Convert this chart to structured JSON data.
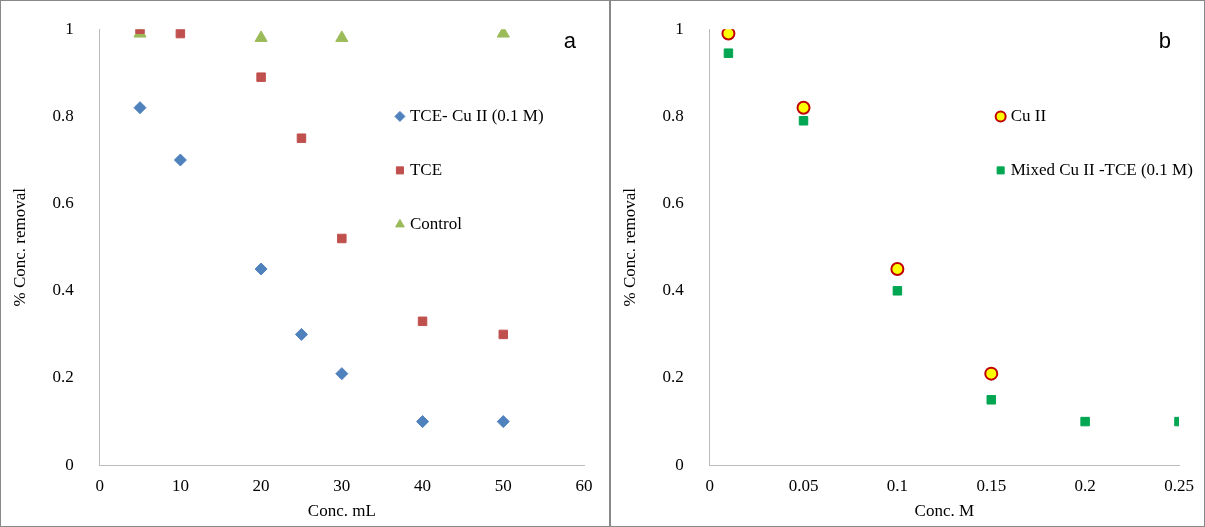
{
  "chart_data": [
    {
      "type": "scatter",
      "xlabel": "Conc. mL",
      "ylabel": "% Conc. removal",
      "annotations": [
        "a"
      ],
      "xlim": [
        0,
        60
      ],
      "xticks": [
        0,
        10,
        20,
        30,
        40,
        50,
        60
      ],
      "ylim": [
        0,
        1
      ],
      "yticks": [
        0,
        0.2,
        0.4,
        0.6,
        0.8,
        1
      ],
      "grid": false,
      "legend": "right",
      "series": [
        {
          "name": "TCE- Cu II (0.1 M)",
          "color": "#4f81bd",
          "marker": "diamond",
          "x": [
            5,
            10,
            20,
            25,
            30,
            40,
            50
          ],
          "values": [
            0.82,
            0.7,
            0.45,
            0.3,
            0.21,
            0.1,
            0.1
          ]
        },
        {
          "name": "TCE",
          "color": "#c0504d",
          "marker": "square",
          "x": [
            5,
            10,
            20,
            25,
            30,
            40,
            50
          ],
          "values": [
            1.0,
            0.99,
            0.89,
            0.75,
            0.52,
            0.33,
            0.3
          ]
        },
        {
          "name": "Control",
          "color": "#9bbb59",
          "marker": "triangle",
          "x": [
            5,
            20,
            30,
            50
          ],
          "values": [
            0.99,
            0.98,
            0.98,
            0.99
          ]
        }
      ]
    },
    {
      "type": "scatter",
      "xlabel": "Conc. M",
      "ylabel": "% Conc. removal",
      "annotations": [
        "b"
      ],
      "xlim": [
        0,
        0.25
      ],
      "xticks": [
        0,
        0.05,
        0.1,
        0.15,
        0.2,
        0.25
      ],
      "ylim": [
        0,
        1
      ],
      "yticks": [
        0,
        0.2,
        0.4,
        0.6,
        0.8,
        1
      ],
      "grid": false,
      "legend": "right",
      "series": [
        {
          "name": "Cu II",
          "color": "#ffff00",
          "marker": "circle",
          "x": [
            0.01,
            0.05,
            0.1,
            0.15
          ],
          "values": [
            0.99,
            0.82,
            0.45,
            0.21
          ]
        },
        {
          "name": "Mixed Cu II -TCE (0.1 M)",
          "color": "#00a651",
          "marker": "square",
          "x": [
            0.01,
            0.05,
            0.1,
            0.15,
            0.2,
            0.25
          ],
          "values": [
            0.945,
            0.79,
            0.4,
            0.15,
            0.1,
            0.1
          ]
        }
      ]
    }
  ]
}
